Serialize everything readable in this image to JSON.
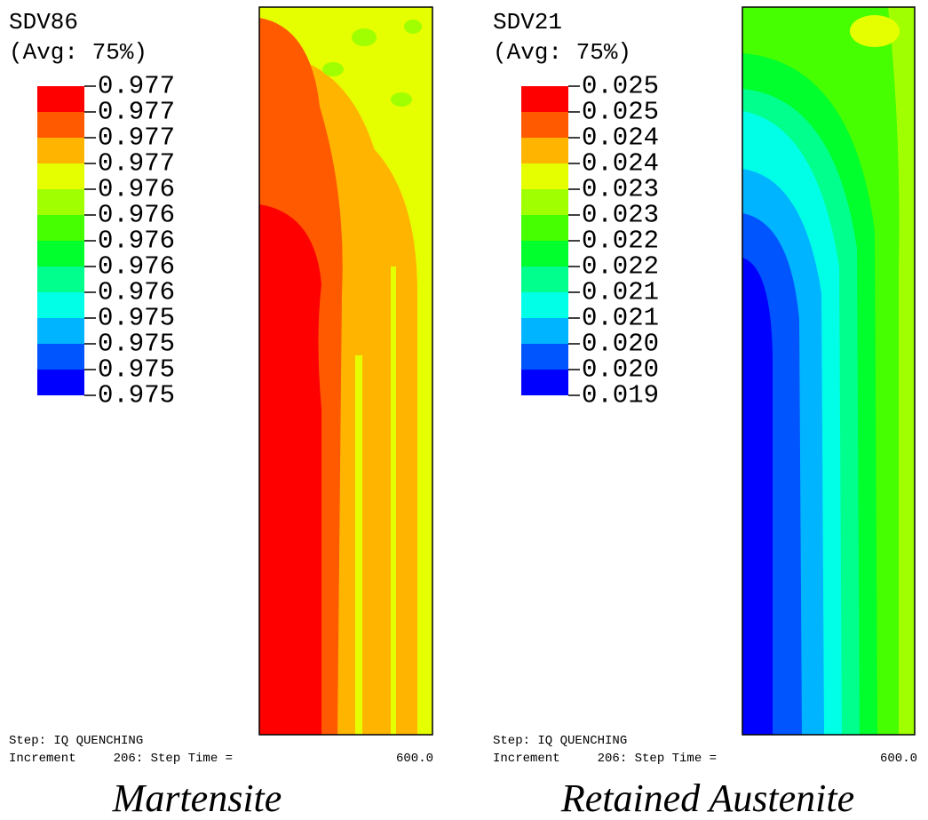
{
  "panels": [
    {
      "variable": "SDV86",
      "average": "(Avg: 75%)",
      "legend": [
        "0.977",
        "0.977",
        "0.977",
        "0.977",
        "0.976",
        "0.976",
        "0.976",
        "0.976",
        "0.976",
        "0.975",
        "0.975",
        "0.975",
        "0.975"
      ],
      "step": "Step: IQ QUENCHING",
      "increment": "Increment     206: Step Time =",
      "time": "600.0",
      "caption": "Martensite"
    },
    {
      "variable": "SDV21",
      "average": "(Avg: 75%)",
      "legend": [
        "0.025",
        "0.025",
        "0.024",
        "0.024",
        "0.023",
        "0.023",
        "0.022",
        "0.022",
        "0.021",
        "0.021",
        "0.020",
        "0.020",
        "0.019"
      ],
      "step": "Step: IQ QUENCHING",
      "increment": "Increment     206: Step Time =",
      "time": "600.0",
      "caption": "Retained Austenite"
    }
  ]
}
